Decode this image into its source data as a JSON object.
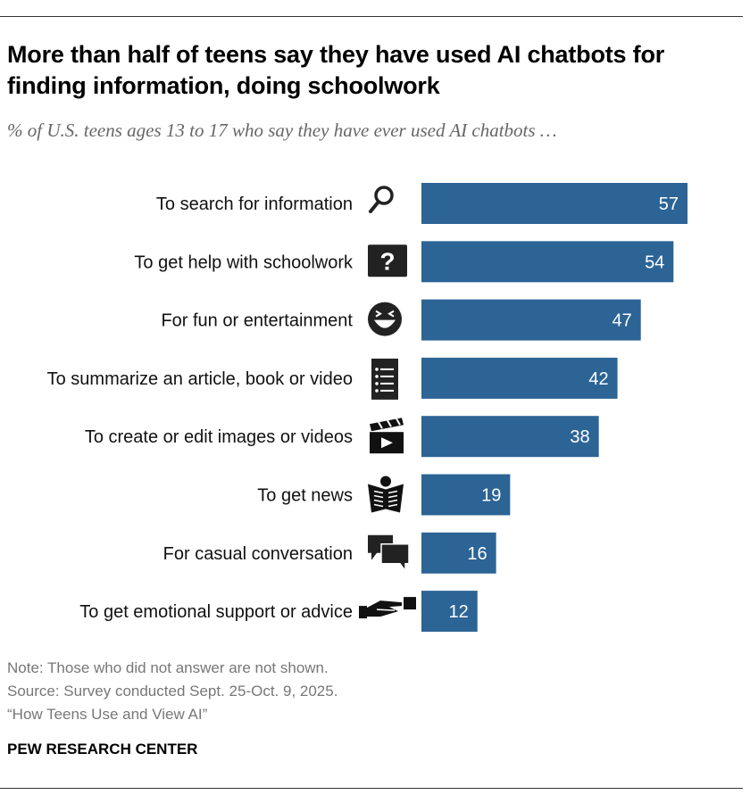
{
  "title": "More than half of teens say they have used AI chatbots for finding information, doing schoolwork",
  "subtitle": "% of U.S. teens ages 13 to 17 who say they have ever used AI chatbots …",
  "notes": {
    "note": "Note: Those who did not answer are not shown.",
    "source": "Source: Survey conducted Sept. 25-Oct. 9, 2025.",
    "report": "“How Teens Use and View AI”"
  },
  "brand": "PEW RESEARCH CENTER",
  "chart_data": {
    "type": "bar",
    "orientation": "horizontal",
    "categories": [
      "To search for information",
      "To get help with schoolwork",
      "For fun or entertainment",
      "To summarize an article, book or video",
      "To create or edit images or videos",
      "To get news",
      "For casual conversation",
      "To get emotional support or advice"
    ],
    "icons": [
      "magnifier-icon",
      "question-mark-icon",
      "laughing-face-icon",
      "list-icon",
      "clapperboard-icon",
      "newspaper-reader-icon",
      "speech-bubbles-icon",
      "helping-hand-icon"
    ],
    "values": [
      57,
      54,
      47,
      42,
      38,
      19,
      16,
      12
    ],
    "xlim": [
      0,
      57
    ],
    "bar_color": "#2c6496",
    "data_labels": true,
    "grid": false
  }
}
